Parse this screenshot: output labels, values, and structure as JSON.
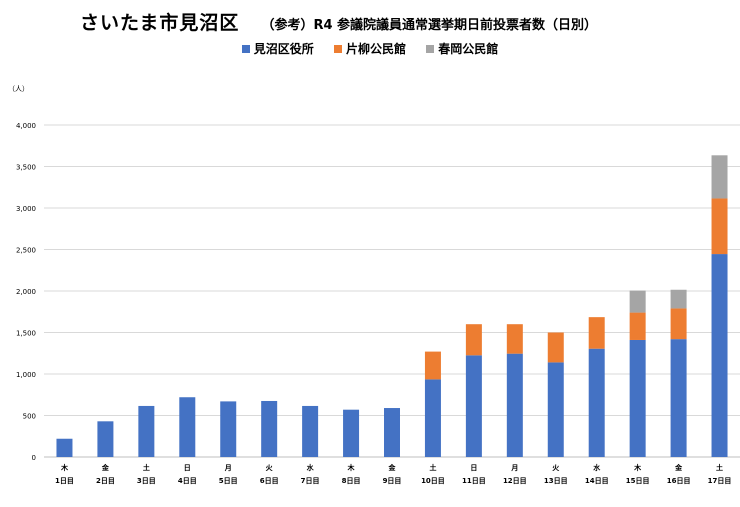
{
  "title": "さいたま市見沼区",
  "subtitle": "（参考）R4 参議院議員通常選挙期日前投票者数（日別）",
  "unit_label": "（人）",
  "chart_data": {
    "type": "bar",
    "stacked": true,
    "title": "さいたま市見沼区　（参考）R4 参議院議員通常選挙期日前投票者数（日別）",
    "xlabel": "",
    "ylabel": "（人）",
    "ylim": [
      0,
      4000
    ],
    "yticks": [
      0,
      500,
      1000,
      1500,
      2000,
      2500,
      3000,
      3500,
      4000
    ],
    "ytick_labels": [
      "0",
      "500",
      "1,000",
      "1,500",
      "2,000",
      "2,500",
      "3,000",
      "3,500",
      "4,000"
    ],
    "grid": true,
    "legend_position": "top",
    "weekdays": [
      "木",
      "金",
      "土",
      "日",
      "月",
      "火",
      "水",
      "木",
      "金",
      "土",
      "日",
      "月",
      "火",
      "水",
      "木",
      "金",
      "土"
    ],
    "categories": [
      "1日目",
      "2日目",
      "3日目",
      "4日目",
      "5日目",
      "6日目",
      "7日目",
      "8日目",
      "9日目",
      "10日目",
      "11日目",
      "12日目",
      "13日目",
      "14日目",
      "15日目",
      "16日目",
      "17日目"
    ],
    "series": [
      {
        "name": "見沼区役所",
        "color": "#4472c4",
        "values": [
          220,
          430,
          615,
          720,
          670,
          675,
          615,
          570,
          590,
          935,
          1225,
          1245,
          1140,
          1305,
          1410,
          1420,
          2445
        ]
      },
      {
        "name": "片柳公民館",
        "color": "#ed7d31",
        "values": [
          0,
          0,
          0,
          0,
          0,
          0,
          0,
          0,
          0,
          335,
          375,
          355,
          360,
          380,
          330,
          370,
          670
        ]
      },
      {
        "name": "春岡公民館",
        "color": "#a5a5a5",
        "values": [
          0,
          0,
          0,
          0,
          0,
          0,
          0,
          0,
          0,
          0,
          0,
          0,
          0,
          0,
          265,
          225,
          520
        ]
      }
    ]
  }
}
